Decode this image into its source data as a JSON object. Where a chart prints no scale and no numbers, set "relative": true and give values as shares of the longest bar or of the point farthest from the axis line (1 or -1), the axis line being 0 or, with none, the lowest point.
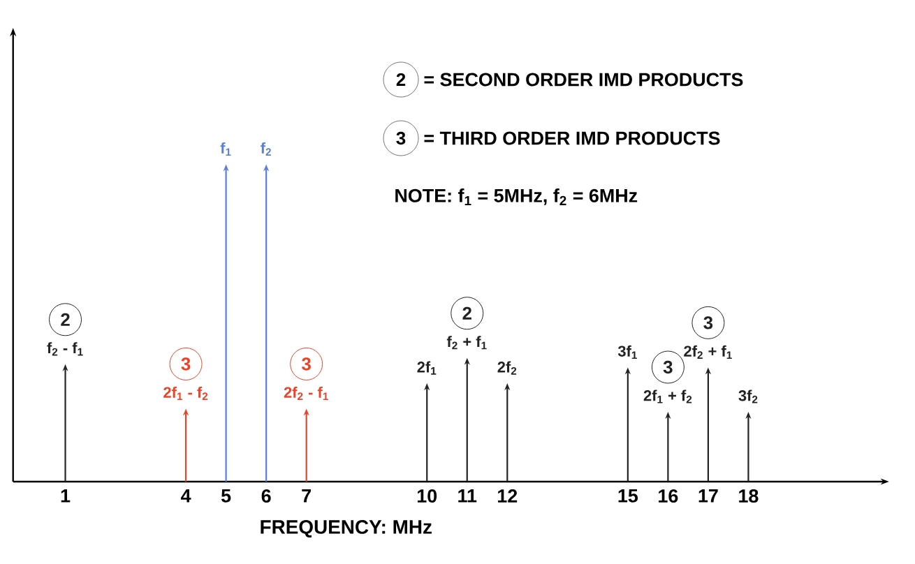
{
  "chart_data": {
    "type": "lollipop",
    "relative": true,
    "xlabel": "FREQUENCY: MHz",
    "x": [
      1,
      4,
      5,
      6,
      7,
      10,
      11,
      12,
      15,
      16,
      17,
      18
    ],
    "values": [
      0.37,
      0.23,
      1.0,
      1.0,
      0.23,
      0.31,
      0.39,
      0.31,
      0.36,
      0.22,
      0.36,
      0.22
    ],
    "colors": [
      "#222222",
      "#e8442a",
      "#5b7fd6",
      "#5b7fd6",
      "#e8442a",
      "#222222",
      "#222222",
      "#222222",
      "#222222",
      "#222222",
      "#222222",
      "#222222"
    ],
    "xlim": [
      -0.3,
      21.5
    ],
    "xticks": [
      1,
      4,
      5,
      6,
      7,
      10,
      11,
      12,
      15,
      16,
      17,
      18
    ],
    "annotations": [
      "2",
      "= SECOND ORDER IMD PRODUCTS",
      "3",
      "= THIRD ORDER IMD PRODUCTS",
      "NOTE:  f$_{1}$ = 5MHz, f$_{2}$ = 6MHz",
      {
        "text": "f$_{1}$",
        "x": 5,
        "y": 1.0
      },
      {
        "text": "f$_{2}$",
        "x": 6,
        "y": 1.0
      },
      {
        "text": "f$_{2}$ - f$_{1}$",
        "x": 1,
        "y": 0.37
      },
      {
        "text": "2",
        "x": 1,
        "y": 0.37
      },
      {
        "text": "2f$_{1}$ - f$_{2}$",
        "x": 4,
        "y": 0.23
      },
      {
        "text": "3",
        "x": 4,
        "y": 0.23
      },
      {
        "text": "2f$_{2}$ - f$_{1}$",
        "x": 7,
        "y": 0.23
      },
      {
        "text": "3",
        "x": 7,
        "y": 0.23
      },
      {
        "text": "2f$_{1}$",
        "x": 10,
        "y": 0.31
      },
      {
        "text": "f$_{2}$ + f$_{1}$",
        "x": 11,
        "y": 0.39
      },
      {
        "text": "2",
        "x": 11,
        "y": 0.39
      },
      {
        "text": "2f$_{2}$",
        "x": 12,
        "y": 0.31
      },
      {
        "text": "3f$_{1}$",
        "x": 15,
        "y": 0.36
      },
      {
        "text": "2f$_{1}$ + f$_{2}$",
        "x": 16,
        "y": 0.22
      },
      {
        "text": "3",
        "x": 16,
        "y": 0.22
      },
      {
        "text": "2f$_{2}$ + f$_{1}$",
        "x": 17,
        "y": 0.36
      },
      {
        "text": "3",
        "x": 17,
        "y": 0.36
      },
      {
        "text": "3f$_{2}$",
        "x": 18,
        "y": 0.22
      }
    ]
  }
}
